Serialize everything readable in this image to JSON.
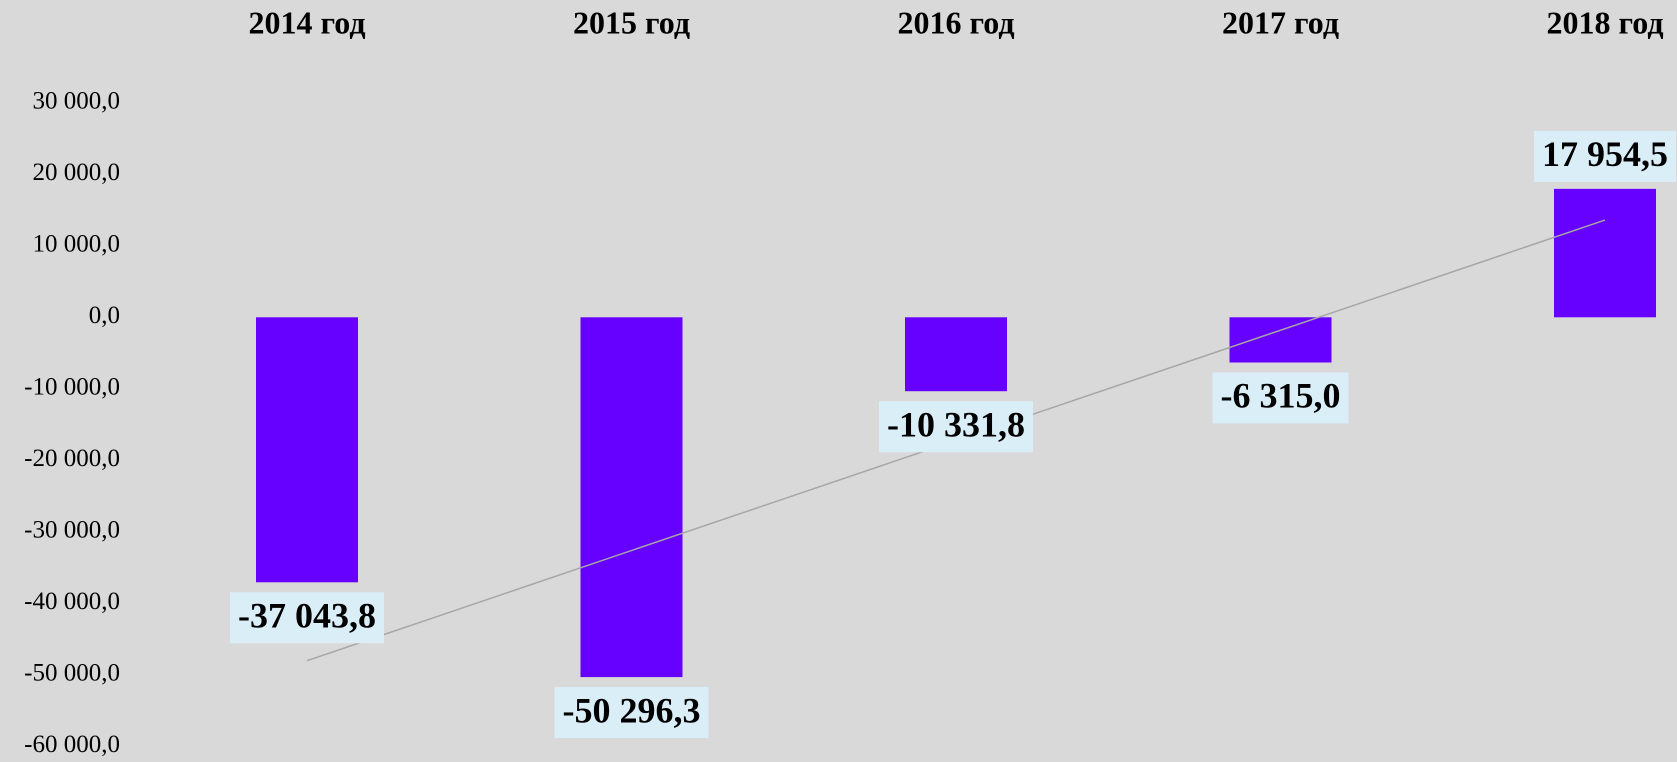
{
  "chart_data": {
    "type": "bar",
    "categories": [
      "2014 год",
      "2015 год",
      "2016 год",
      "2017 год",
      "2018 год"
    ],
    "values": [
      -37043.8,
      -50296.3,
      -10331.8,
      -6315.0,
      17954.5
    ],
    "value_labels": [
      "-37 043,8",
      "-50 296,3",
      "-10 331,8",
      "-6 315,0",
      "17 954,5"
    ],
    "color": "#6600ff",
    "ylim": [
      -60000,
      30000
    ],
    "yticks": [
      {
        "value": 30000,
        "label": "30 000,0"
      },
      {
        "value": 20000,
        "label": "20 000,0"
      },
      {
        "value": 10000,
        "label": "10 000,0"
      },
      {
        "value": 0,
        "label": "0,0"
      },
      {
        "value": -10000,
        "label": "-10 000,0"
      },
      {
        "value": -20000,
        "label": "-20 000,0"
      },
      {
        "value": -30000,
        "label": "-30 000,0"
      },
      {
        "value": -40000,
        "label": "-40 000,0"
      },
      {
        "value": -50000,
        "label": "-50 000,0"
      },
      {
        "value": -60000,
        "label": "-60 000,0"
      }
    ],
    "grid": false,
    "trendline": "linear"
  }
}
